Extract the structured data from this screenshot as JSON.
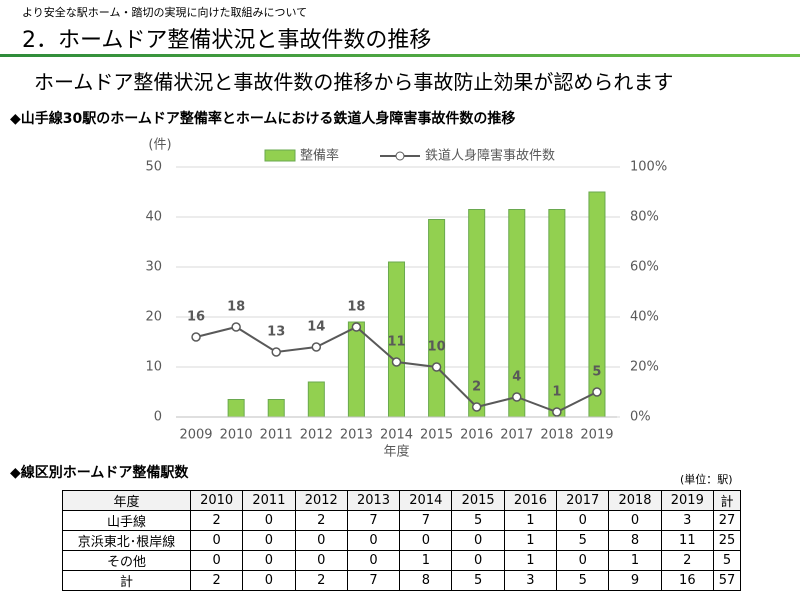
{
  "header": {
    "breadcrumb": "より安全な駅ホーム・踏切の実現に向けた取組みについて",
    "title": "2．ホームドア整備状況と事故件数の推移"
  },
  "subtitle": "ホームドア整備状況と事故件数の推移から事故防止効果が認められます",
  "chart_heading": "◆山手線30駅のホームドア整備率とホームにおける鉄道人身障害事故件数の推移",
  "chart_data": {
    "type": "bar",
    "y_unit_label": "(件)",
    "x_label": "年度",
    "categories": [
      "2009",
      "2010",
      "2011",
      "2012",
      "2013",
      "2014",
      "2015",
      "2016",
      "2017",
      "2018",
      "2019"
    ],
    "series": [
      {
        "name": "整備率",
        "type": "bar",
        "axis": "y2",
        "color": "#92d050",
        "values": [
          0,
          7,
          7,
          14,
          38,
          62,
          79,
          83,
          83,
          83,
          90
        ]
      },
      {
        "name": "鉄道人身障害事故件数",
        "type": "line",
        "color": "#595959",
        "values": [
          16,
          18,
          13,
          14,
          18,
          11,
          10,
          2,
          4,
          1,
          5
        ]
      }
    ],
    "ylim": [
      0,
      50
    ],
    "yticks": [
      0,
      10,
      20,
      30,
      40,
      50
    ],
    "y2lim": [
      0,
      100
    ],
    "y2ticks": [
      {
        "value": 0,
        "label": "0%"
      },
      {
        "value": 20,
        "label": "20%"
      },
      {
        "value": 40,
        "label": "40%"
      },
      {
        "value": 60,
        "label": "60%"
      },
      {
        "value": 80,
        "label": "80%"
      },
      {
        "value": 100,
        "label": "100%"
      }
    ],
    "grid": true
  },
  "table_heading": "◆線区別ホームドア整備駅数",
  "table_unit": "(単位：駅)",
  "table": {
    "header": [
      "年度",
      "2010",
      "2011",
      "2012",
      "2013",
      "2014",
      "2015",
      "2016",
      "2017",
      "2018",
      "2019",
      "計"
    ],
    "rows": [
      [
        "山手線",
        2,
        0,
        2,
        7,
        7,
        5,
        1,
        0,
        0,
        3,
        27
      ],
      [
        "京浜東北･根岸線",
        0,
        0,
        0,
        0,
        0,
        0,
        1,
        5,
        8,
        11,
        25
      ],
      [
        "その他",
        0,
        0,
        0,
        0,
        1,
        0,
        1,
        0,
        1,
        2,
        5
      ],
      [
        "計",
        2,
        0,
        2,
        7,
        8,
        5,
        3,
        5,
        9,
        16,
        57
      ]
    ]
  }
}
